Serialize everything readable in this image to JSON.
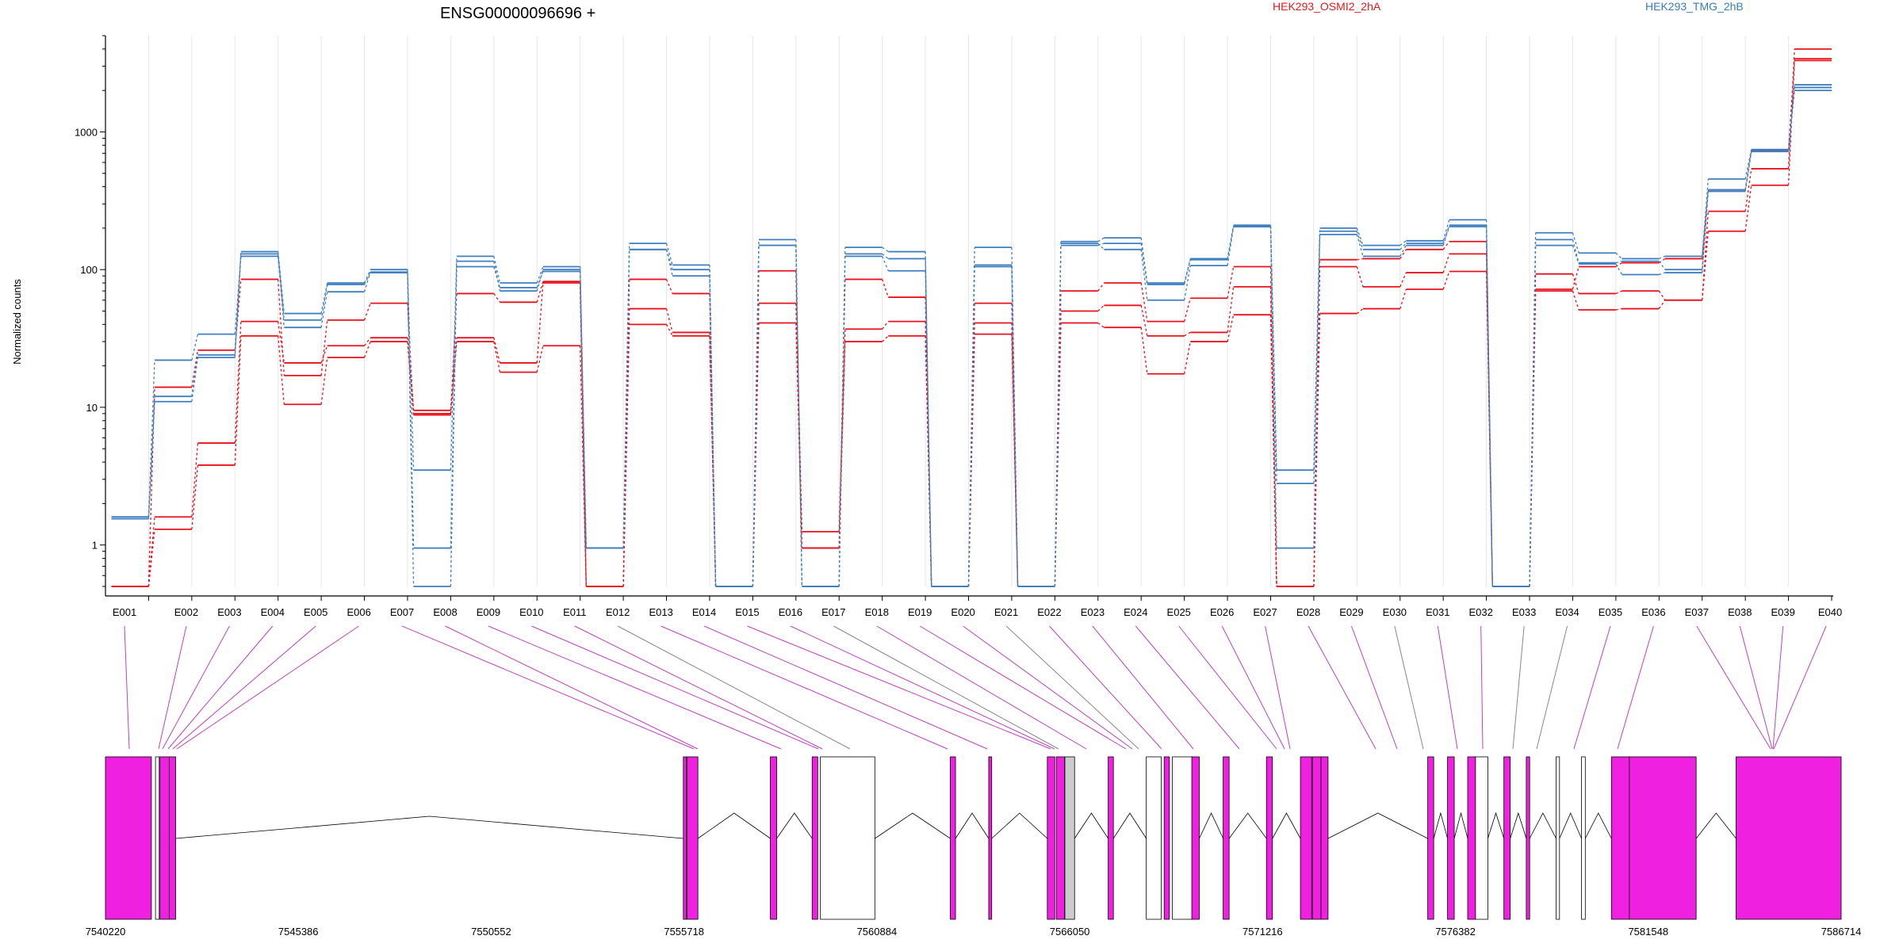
{
  "chart_data": {
    "type": "line",
    "title": "ENSG00000096696 +",
    "ylabel": "Normalized counts",
    "yscale": "log",
    "ylim": [
      0.5,
      5000
    ],
    "yticks": [
      {
        "value": 1,
        "label": "1"
      },
      {
        "value": 10,
        "label": "10"
      },
      {
        "value": 100,
        "label": "100"
      },
      {
        "value": 1000,
        "label": "1000"
      }
    ],
    "legend": [
      {
        "label": "HEK293_OSMI2_2hA",
        "color": "#e41a1c"
      },
      {
        "label": "HEK293_TMG_2hB",
        "color": "#377eb8"
      }
    ],
    "categories": [
      "E001",
      "E002",
      "E003",
      "E004",
      "E005",
      "E006",
      "E007",
      "E008",
      "E009",
      "E010",
      "E011",
      "E012",
      "E013",
      "E014",
      "E015",
      "E016",
      "E017",
      "E018",
      "E019",
      "E020",
      "E021",
      "E022",
      "E023",
      "E024",
      "E025",
      "E026",
      "E027",
      "E028",
      "E029",
      "E030",
      "E031",
      "E032",
      "E033",
      "E034",
      "E035",
      "E036",
      "E037",
      "E038",
      "E039",
      "E040"
    ],
    "series": [
      {
        "group": "red",
        "values": [
          0.5,
          1.6,
          5.5,
          42,
          21,
          28,
          32,
          9.5,
          32,
          21,
          80,
          0.5,
          52,
          35,
          0.5,
          57,
          1.25,
          37,
          42,
          0.5,
          57,
          0.5,
          50,
          55,
          33,
          35,
          75,
          0.5,
          105,
          75,
          95,
          130,
          0.5,
          93,
          67,
          70,
          60,
          265,
          540,
          4000
        ]
      },
      {
        "group": "red",
        "values": [
          0.5,
          1.3,
          3.8,
          33,
          10.5,
          23,
          30,
          9,
          30,
          18,
          28,
          0.5,
          40,
          33,
          0.5,
          41,
          0.95,
          30,
          33,
          0.5,
          34,
          0.5,
          41,
          38,
          17.5,
          30,
          47,
          0.5,
          48,
          52,
          72,
          97,
          0.5,
          70,
          51,
          52,
          60,
          190,
          410,
          3300
        ]
      },
      {
        "group": "red",
        "values": [
          0.5,
          14,
          26,
          85,
          17,
          43,
          57,
          8.8,
          67,
          58,
          82,
          0.5,
          85,
          67,
          0.5,
          98,
          0.95,
          85,
          63,
          0.5,
          41,
          0.5,
          70,
          80,
          42,
          62,
          105,
          0.5,
          118,
          120,
          140,
          160,
          0.5,
          72,
          105,
          112,
          120,
          380,
          740,
          3400
        ]
      },
      {
        "group": "blue",
        "values": [
          1.6,
          12,
          24,
          135,
          48,
          80,
          100,
          3.5,
          125,
          80,
          105,
          0.95,
          155,
          108,
          0.5,
          165,
          0.5,
          145,
          135,
          0.5,
          145,
          0.5,
          160,
          170,
          80,
          120,
          210,
          3.5,
          200,
          150,
          162,
          230,
          0.5,
          185,
          132,
          120,
          125,
          455,
          745,
          2200
        ]
      },
      {
        "group": "blue",
        "values": [
          1.55,
          11,
          23,
          130,
          43,
          78,
          95,
          0.95,
          115,
          70,
          100,
          0.95,
          140,
          100,
          0.5,
          150,
          0.5,
          130,
          120,
          0.5,
          108,
          0.5,
          150,
          155,
          78,
          118,
          205,
          2.8,
          190,
          140,
          155,
          210,
          0.5,
          165,
          112,
          115,
          100,
          380,
          725,
          2100
        ]
      },
      {
        "group": "blue",
        "values": [
          1.6,
          22,
          34,
          125,
          38,
          69,
          96,
          0.5,
          105,
          74,
          97,
          0.95,
          140,
          90,
          0.5,
          150,
          0.5,
          125,
          98,
          0.5,
          105,
          0.5,
          155,
          140,
          60,
          107,
          205,
          0.95,
          180,
          125,
          150,
          205,
          0.5,
          150,
          110,
          92,
          95,
          370,
          720,
          2000
        ]
      }
    ],
    "gene_model": {
      "coord_ticks": [
        "7540220",
        "7545386",
        "7550552",
        "7555718",
        "7560884",
        "7566050",
        "7571216",
        "7576382",
        "7581548",
        "7586714"
      ]
    }
  }
}
